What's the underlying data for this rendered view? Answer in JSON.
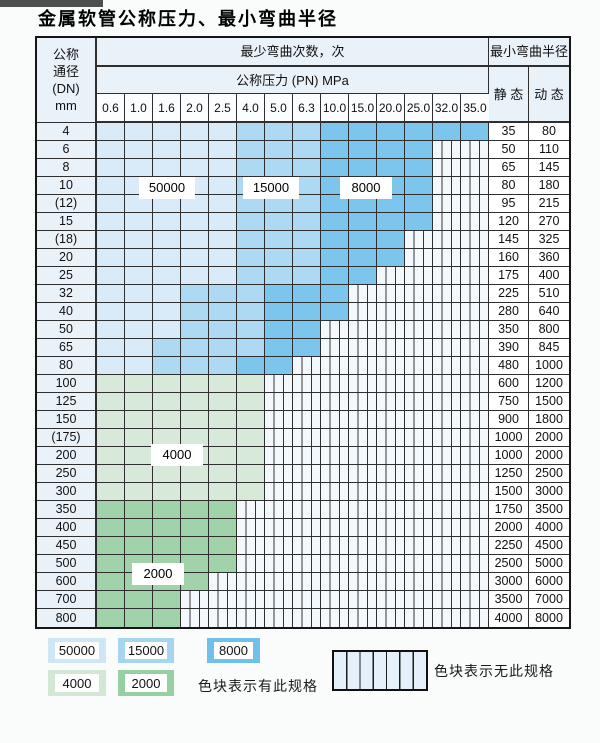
{
  "title": "金属软管公称压力、最小弯曲半径",
  "colors": {
    "blue_50000": "#d9ebf8",
    "blue_15000": "#aed9f3",
    "blue_8000": "#7cc6ee",
    "green_4000": "#d7e9d8",
    "green_2000": "#a0d3aa",
    "header_bg": "#e9f1f9",
    "grid_line": "#2f2f2f"
  },
  "table": {
    "corner": [
      "公称",
      "通径",
      "(DN)",
      "mm"
    ],
    "bend_cycles_header": "最少弯曲次数，次",
    "radius_header": "最小弯曲半径",
    "pressure_header": "公称压力 (PN) MPa",
    "static_header": "静 态",
    "dynamic_header": "动 态",
    "pressure_columns": [
      "0.6",
      "1.0",
      "1.6",
      "2.0",
      "2.5",
      "4.0",
      "5.0",
      "6.3",
      "10.0",
      "15.0",
      "20.0",
      "25.0",
      "32.0",
      "35.0"
    ],
    "cell_legend_key": {
      "b1": "50000次",
      "b2": "15000次",
      "b3": "8000次",
      "g1": "4000次",
      "g2": "2000次",
      "h": "无此规格"
    },
    "rows": [
      {
        "dn": "4",
        "static": "35",
        "dynamic": "80",
        "cells": [
          "b1",
          "b1",
          "b1",
          "b1",
          "b1",
          "b2",
          "b2",
          "b2",
          "b3",
          "b3",
          "b3",
          "b3",
          "b3",
          "b3"
        ]
      },
      {
        "dn": "6",
        "static": "50",
        "dynamic": "110",
        "cells": [
          "b1",
          "b1",
          "b1",
          "b1",
          "b1",
          "b2",
          "b2",
          "b2",
          "b3",
          "b3",
          "b3",
          "b3",
          "h",
          "h"
        ]
      },
      {
        "dn": "8",
        "static": "65",
        "dynamic": "145",
        "cells": [
          "b1",
          "b1",
          "b1",
          "b1",
          "b1",
          "b2",
          "b2",
          "b2",
          "b3",
          "b3",
          "b3",
          "b3",
          "h",
          "h"
        ]
      },
      {
        "dn": "10",
        "static": "80",
        "dynamic": "180",
        "cells": [
          "b1",
          "b1",
          "b1",
          "b1",
          "b1",
          "b2",
          "b2",
          "b2",
          "b3",
          "b3",
          "b3",
          "b3",
          "h",
          "h"
        ]
      },
      {
        "dn": "(12)",
        "static": "95",
        "dynamic": "215",
        "cells": [
          "b1",
          "b1",
          "b1",
          "b1",
          "b1",
          "b2",
          "b2",
          "b2",
          "b3",
          "b3",
          "b3",
          "b3",
          "h",
          "h"
        ]
      },
      {
        "dn": "15",
        "static": "120",
        "dynamic": "270",
        "cells": [
          "b1",
          "b1",
          "b1",
          "b1",
          "b1",
          "b2",
          "b2",
          "b2",
          "b3",
          "b3",
          "b3",
          "b3",
          "h",
          "h"
        ]
      },
      {
        "dn": "(18)",
        "static": "145",
        "dynamic": "325",
        "cells": [
          "b1",
          "b1",
          "b1",
          "b1",
          "b1",
          "b2",
          "b2",
          "b2",
          "b3",
          "b3",
          "b3",
          "h",
          "h",
          "h"
        ]
      },
      {
        "dn": "20",
        "static": "160",
        "dynamic": "360",
        "cells": [
          "b1",
          "b1",
          "b1",
          "b1",
          "b1",
          "b2",
          "b2",
          "b2",
          "b3",
          "b3",
          "b3",
          "h",
          "h",
          "h"
        ]
      },
      {
        "dn": "25",
        "static": "175",
        "dynamic": "400",
        "cells": [
          "b1",
          "b1",
          "b1",
          "b1",
          "b1",
          "b2",
          "b2",
          "b2",
          "b3",
          "b3",
          "h",
          "h",
          "h",
          "h"
        ]
      },
      {
        "dn": "32",
        "static": "225",
        "dynamic": "510",
        "cells": [
          "b1",
          "b1",
          "b1",
          "b2",
          "b2",
          "b2",
          "b3",
          "b3",
          "b3",
          "h",
          "h",
          "h",
          "h",
          "h"
        ]
      },
      {
        "dn": "40",
        "static": "280",
        "dynamic": "640",
        "cells": [
          "b1",
          "b1",
          "b1",
          "b2",
          "b2",
          "b2",
          "b3",
          "b3",
          "b3",
          "h",
          "h",
          "h",
          "h",
          "h"
        ]
      },
      {
        "dn": "50",
        "static": "350",
        "dynamic": "800",
        "cells": [
          "b1",
          "b1",
          "b1",
          "b2",
          "b2",
          "b2",
          "b3",
          "b3",
          "h",
          "h",
          "h",
          "h",
          "h",
          "h"
        ]
      },
      {
        "dn": "65",
        "static": "390",
        "dynamic": "845",
        "cells": [
          "b1",
          "b1",
          "b2",
          "b2",
          "b2",
          "b2",
          "b3",
          "b3",
          "h",
          "h",
          "h",
          "h",
          "h",
          "h"
        ]
      },
      {
        "dn": "80",
        "static": "480",
        "dynamic": "1000",
        "cells": [
          "b1",
          "b1",
          "b2",
          "b2",
          "b2",
          "b3",
          "b3",
          "h",
          "h",
          "h",
          "h",
          "h",
          "h",
          "h"
        ]
      },
      {
        "dn": "100",
        "static": "600",
        "dynamic": "1200",
        "cells": [
          "g1",
          "g1",
          "g1",
          "g1",
          "g1",
          "g1",
          "h",
          "h",
          "h",
          "h",
          "h",
          "h",
          "h",
          "h"
        ]
      },
      {
        "dn": "125",
        "static": "750",
        "dynamic": "1500",
        "cells": [
          "g1",
          "g1",
          "g1",
          "g1",
          "g1",
          "g1",
          "h",
          "h",
          "h",
          "h",
          "h",
          "h",
          "h",
          "h"
        ]
      },
      {
        "dn": "150",
        "static": "900",
        "dynamic": "1800",
        "cells": [
          "g1",
          "g1",
          "g1",
          "g1",
          "g1",
          "g1",
          "h",
          "h",
          "h",
          "h",
          "h",
          "h",
          "h",
          "h"
        ]
      },
      {
        "dn": "(175)",
        "static": "1000",
        "dynamic": "2000",
        "cells": [
          "g1",
          "g1",
          "g1",
          "g1",
          "g1",
          "g1",
          "h",
          "h",
          "h",
          "h",
          "h",
          "h",
          "h",
          "h"
        ]
      },
      {
        "dn": "200",
        "static": "1000",
        "dynamic": "2000",
        "cells": [
          "g1",
          "g1",
          "g1",
          "g1",
          "g1",
          "g1",
          "h",
          "h",
          "h",
          "h",
          "h",
          "h",
          "h",
          "h"
        ]
      },
      {
        "dn": "250",
        "static": "1250",
        "dynamic": "2500",
        "cells": [
          "g1",
          "g1",
          "g1",
          "g1",
          "g1",
          "g1",
          "h",
          "h",
          "h",
          "h",
          "h",
          "h",
          "h",
          "h"
        ]
      },
      {
        "dn": "300",
        "static": "1500",
        "dynamic": "3000",
        "cells": [
          "g1",
          "g1",
          "g1",
          "g1",
          "g1",
          "g1",
          "h",
          "h",
          "h",
          "h",
          "h",
          "h",
          "h",
          "h"
        ]
      },
      {
        "dn": "350",
        "static": "1750",
        "dynamic": "3500",
        "cells": [
          "g2",
          "g2",
          "g2",
          "g2",
          "g2",
          "h",
          "h",
          "h",
          "h",
          "h",
          "h",
          "h",
          "h",
          "h"
        ]
      },
      {
        "dn": "400",
        "static": "2000",
        "dynamic": "4000",
        "cells": [
          "g2",
          "g2",
          "g2",
          "g2",
          "g2",
          "h",
          "h",
          "h",
          "h",
          "h",
          "h",
          "h",
          "h",
          "h"
        ]
      },
      {
        "dn": "450",
        "static": "2250",
        "dynamic": "4500",
        "cells": [
          "g2",
          "g2",
          "g2",
          "g2",
          "g2",
          "h",
          "h",
          "h",
          "h",
          "h",
          "h",
          "h",
          "h",
          "h"
        ]
      },
      {
        "dn": "500",
        "static": "2500",
        "dynamic": "5000",
        "cells": [
          "g2",
          "g2",
          "g2",
          "g2",
          "g2",
          "h",
          "h",
          "h",
          "h",
          "h",
          "h",
          "h",
          "h",
          "h"
        ]
      },
      {
        "dn": "600",
        "static": "3000",
        "dynamic": "6000",
        "cells": [
          "g2",
          "g2",
          "g2",
          "g2",
          "h",
          "h",
          "h",
          "h",
          "h",
          "h",
          "h",
          "h",
          "h",
          "h"
        ]
      },
      {
        "dn": "700",
        "static": "3500",
        "dynamic": "7000",
        "cells": [
          "g2",
          "g2",
          "g2",
          "h",
          "h",
          "h",
          "h",
          "h",
          "h",
          "h",
          "h",
          "h",
          "h",
          "h"
        ]
      },
      {
        "dn": "800",
        "static": "4000",
        "dynamic": "8000",
        "cells": [
          "g2",
          "g2",
          "g2",
          "h",
          "h",
          "h",
          "h",
          "h",
          "h",
          "h",
          "h",
          "h",
          "h",
          "h"
        ]
      }
    ]
  },
  "overlays": {
    "o50000": "50000",
    "o15000": "15000",
    "o8000": "8000",
    "o4000": "4000",
    "o2000": "2000"
  },
  "legend": {
    "sw50000": "50000",
    "sw15000": "15000",
    "sw8000": "8000",
    "sw4000": "4000",
    "sw2000": "2000",
    "has_spec_label": "色块表示有此规格",
    "no_spec_label": "色块表示无此规格"
  }
}
